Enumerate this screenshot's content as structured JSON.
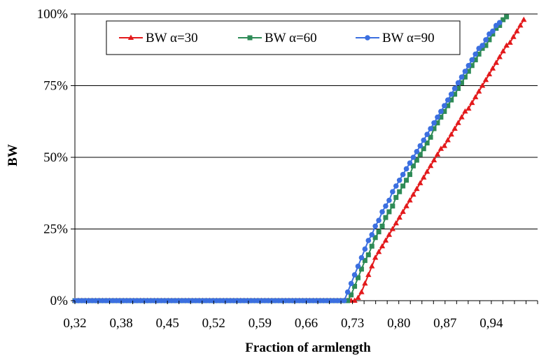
{
  "chart_data": {
    "type": "line",
    "title": "",
    "xlabel": "Fraction of armlength",
    "ylabel": "BW",
    "x_tick_labels": [
      "0,32",
      "0,38",
      "0,45",
      "0,52",
      "0,59",
      "0,66",
      "0,73",
      "0,80",
      "0,87",
      "0,94"
    ],
    "y_tick_labels": [
      "0%",
      "25%",
      "50%",
      "75%",
      "100%"
    ],
    "xlim": [
      0.32,
      0.99
    ],
    "ylim": [
      0,
      100
    ],
    "grid": "horizontal",
    "legend_position": "top-left",
    "series": [
      {
        "name": "BW α=30",
        "color": "#e31a1c",
        "marker": "triangle",
        "points": [
          [
            0.32,
            0
          ],
          [
            0.72,
            0
          ],
          [
            0.725,
            0
          ],
          [
            0.73,
            1
          ],
          [
            0.735,
            3
          ],
          [
            0.74,
            6
          ],
          [
            0.745,
            9
          ],
          [
            0.75,
            12
          ],
          [
            0.755,
            15
          ],
          [
            0.76,
            17
          ],
          [
            0.765,
            19
          ],
          [
            0.77,
            21
          ],
          [
            0.775,
            23
          ],
          [
            0.78,
            25
          ],
          [
            0.785,
            27
          ],
          [
            0.79,
            29
          ],
          [
            0.795,
            31
          ],
          [
            0.8,
            33
          ],
          [
            0.805,
            35
          ],
          [
            0.81,
            37
          ],
          [
            0.815,
            39
          ],
          [
            0.82,
            41
          ],
          [
            0.825,
            43
          ],
          [
            0.83,
            45
          ],
          [
            0.835,
            47
          ],
          [
            0.84,
            49
          ],
          [
            0.845,
            51
          ],
          [
            0.85,
            53
          ],
          [
            0.855,
            54
          ],
          [
            0.86,
            56
          ],
          [
            0.865,
            58
          ],
          [
            0.87,
            60
          ],
          [
            0.875,
            62
          ],
          [
            0.88,
            64
          ],
          [
            0.885,
            66
          ],
          [
            0.89,
            67
          ],
          [
            0.895,
            69
          ],
          [
            0.9,
            71
          ],
          [
            0.905,
            73
          ],
          [
            0.91,
            75
          ],
          [
            0.915,
            77
          ],
          [
            0.92,
            79
          ],
          [
            0.925,
            81
          ],
          [
            0.93,
            83
          ],
          [
            0.935,
            85
          ],
          [
            0.94,
            87
          ],
          [
            0.945,
            89
          ],
          [
            0.95,
            90
          ],
          [
            0.955,
            92
          ],
          [
            0.96,
            94
          ],
          [
            0.965,
            96
          ],
          [
            0.97,
            98
          ]
        ]
      },
      {
        "name": "BW α=60",
        "color": "#2e8b57",
        "marker": "square",
        "points": [
          [
            0.32,
            0
          ],
          [
            0.71,
            0
          ],
          [
            0.715,
            0
          ],
          [
            0.72,
            2
          ],
          [
            0.725,
            5
          ],
          [
            0.73,
            8
          ],
          [
            0.735,
            11
          ],
          [
            0.74,
            14
          ],
          [
            0.745,
            16
          ],
          [
            0.75,
            19
          ],
          [
            0.755,
            22
          ],
          [
            0.76,
            24
          ],
          [
            0.765,
            26
          ],
          [
            0.77,
            29
          ],
          [
            0.775,
            31
          ],
          [
            0.78,
            33
          ],
          [
            0.785,
            36
          ],
          [
            0.79,
            38
          ],
          [
            0.795,
            40
          ],
          [
            0.8,
            42
          ],
          [
            0.805,
            44
          ],
          [
            0.81,
            47
          ],
          [
            0.815,
            49
          ],
          [
            0.82,
            51
          ],
          [
            0.825,
            53
          ],
          [
            0.83,
            55
          ],
          [
            0.835,
            57
          ],
          [
            0.84,
            60
          ],
          [
            0.845,
            62
          ],
          [
            0.85,
            64
          ],
          [
            0.855,
            66
          ],
          [
            0.86,
            68
          ],
          [
            0.865,
            70
          ],
          [
            0.87,
            72
          ],
          [
            0.875,
            74
          ],
          [
            0.88,
            76
          ],
          [
            0.885,
            78
          ],
          [
            0.89,
            80
          ],
          [
            0.895,
            82
          ],
          [
            0.9,
            84
          ],
          [
            0.905,
            86
          ],
          [
            0.91,
            88
          ],
          [
            0.915,
            89
          ],
          [
            0.92,
            91
          ],
          [
            0.925,
            93
          ],
          [
            0.93,
            95
          ],
          [
            0.935,
            96
          ],
          [
            0.94,
            98
          ],
          [
            0.945,
            99
          ]
        ]
      },
      {
        "name": "BW α=90",
        "color": "#3b6fe0",
        "marker": "circle",
        "points": [
          [
            0.32,
            0
          ],
          [
            0.705,
            0
          ],
          [
            0.71,
            0
          ],
          [
            0.715,
            3
          ],
          [
            0.72,
            6
          ],
          [
            0.725,
            9
          ],
          [
            0.73,
            12
          ],
          [
            0.735,
            15
          ],
          [
            0.74,
            18
          ],
          [
            0.745,
            21
          ],
          [
            0.75,
            23
          ],
          [
            0.755,
            26
          ],
          [
            0.76,
            28
          ],
          [
            0.765,
            31
          ],
          [
            0.77,
            33
          ],
          [
            0.775,
            35
          ],
          [
            0.78,
            38
          ],
          [
            0.785,
            40
          ],
          [
            0.79,
            42
          ],
          [
            0.795,
            44
          ],
          [
            0.8,
            46
          ],
          [
            0.805,
            48
          ],
          [
            0.81,
            50
          ],
          [
            0.815,
            52
          ],
          [
            0.82,
            54
          ],
          [
            0.825,
            56
          ],
          [
            0.83,
            58
          ],
          [
            0.835,
            60
          ],
          [
            0.84,
            62
          ],
          [
            0.845,
            64
          ],
          [
            0.85,
            66
          ],
          [
            0.855,
            68
          ],
          [
            0.86,
            70
          ],
          [
            0.865,
            72
          ],
          [
            0.87,
            74
          ],
          [
            0.875,
            76
          ],
          [
            0.88,
            78
          ],
          [
            0.885,
            80
          ],
          [
            0.89,
            82
          ],
          [
            0.895,
            84
          ],
          [
            0.9,
            86
          ],
          [
            0.905,
            88
          ],
          [
            0.91,
            89
          ],
          [
            0.915,
            91
          ],
          [
            0.92,
            93
          ],
          [
            0.925,
            94
          ],
          [
            0.93,
            96
          ],
          [
            0.935,
            97
          ]
        ]
      }
    ]
  }
}
